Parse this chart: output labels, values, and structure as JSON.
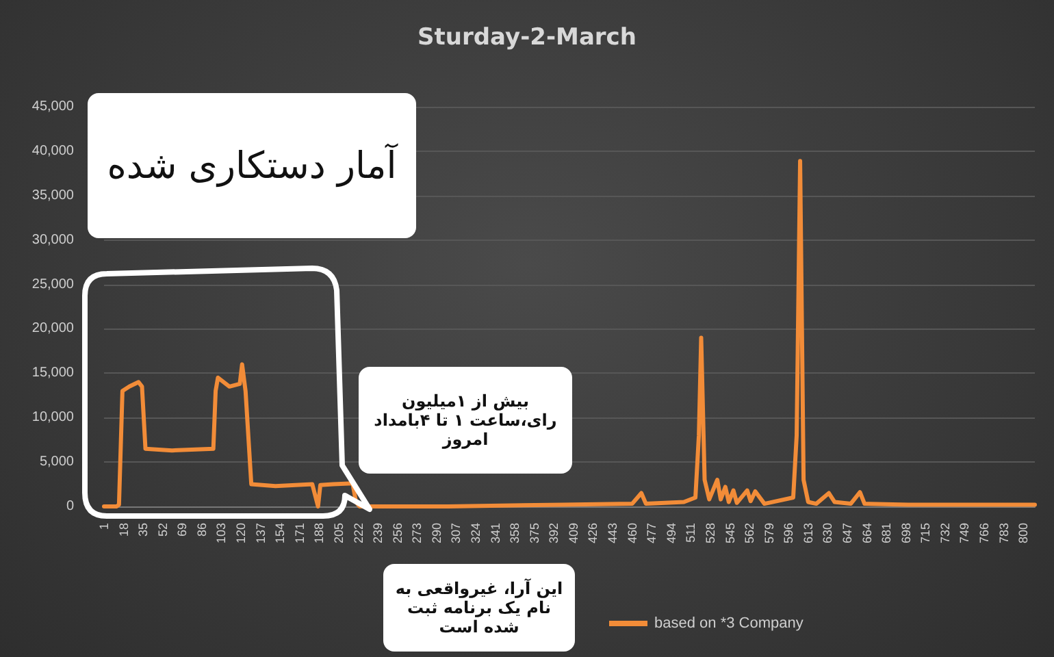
{
  "chart_data": {
    "type": "line",
    "title": "Sturday-2-March",
    "x": [
      1,
      12,
      14,
      17,
      23,
      31,
      34,
      37,
      60,
      96,
      98,
      100,
      110,
      119,
      121,
      124,
      129,
      150,
      182,
      185,
      187,
      189,
      200,
      217,
      220,
      223,
      300,
      400,
      460,
      468,
      472,
      505,
      515,
      518,
      520,
      523,
      527,
      534,
      537,
      541,
      544,
      548,
      551,
      560,
      563,
      567,
      575,
      600,
      603,
      606,
      609,
      613,
      620,
      631,
      636,
      650,
      658,
      662,
      700,
      750,
      810
    ],
    "series": [
      {
        "name": "based on *3 Company",
        "color": "#f28c38",
        "values": [
          0,
          0,
          200,
          13000,
          13500,
          14000,
          13500,
          6500,
          6300,
          6500,
          13000,
          14500,
          13500,
          13800,
          16000,
          13000,
          2500,
          2300,
          2500,
          1000,
          0,
          2400,
          2500,
          2600,
          500,
          0,
          0,
          200,
          300,
          1500,
          300,
          500,
          1000,
          8000,
          19000,
          3000,
          800,
          3000,
          800,
          2200,
          500,
          1800,
          400,
          1800,
          600,
          1700,
          300,
          1000,
          8000,
          38900,
          3000,
          500,
          300,
          1500,
          500,
          300,
          1600,
          300,
          200,
          200,
          200
        ]
      }
    ],
    "xlim": [
      1,
      810
    ],
    "xticks": [
      1,
      18,
      35,
      52,
      69,
      86,
      103,
      120,
      137,
      154,
      171,
      188,
      205,
      222,
      239,
      256,
      273,
      290,
      307,
      324,
      341,
      358,
      375,
      392,
      409,
      426,
      443,
      460,
      477,
      494,
      511,
      528,
      545,
      562,
      579,
      596,
      613,
      630,
      647,
      664,
      681,
      698,
      715,
      732,
      749,
      766,
      783,
      800
    ],
    "ylim": [
      0,
      45000
    ],
    "yticks": [
      {
        "value": 0,
        "label": "0"
      },
      {
        "value": 5000,
        "label": "5,000"
      },
      {
        "value": 10000,
        "label": "10,000"
      },
      {
        "value": 15000,
        "label": "15,000"
      },
      {
        "value": 20000,
        "label": "20,000"
      },
      {
        "value": 25000,
        "label": "25,000"
      },
      {
        "value": 30000,
        "label": "30,000"
      },
      {
        "value": 35000,
        "label": "35,000"
      },
      {
        "value": 40000,
        "label": "40,000"
      },
      {
        "value": 45000,
        "label": "45,000"
      }
    ],
    "grid": "y",
    "legend": "bottom",
    "marker": "none",
    "line_style": "solid",
    "annotations": [
      "آمار دستکاری شده",
      "بیش از ۱میلیون رای،ساعت ۱ تا ۴بامداد امروز",
      "این آرا، غیرواقعی به نام یک برنامه ثبت شده است"
    ]
  }
}
